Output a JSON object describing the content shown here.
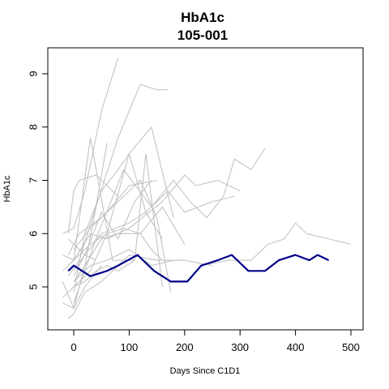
{
  "chart_data": {
    "type": "line",
    "title": "HbA1c",
    "subtitle": "105-001",
    "xlabel": "Days Since C1D1",
    "ylabel": "HbA1c",
    "xlim": [
      -40,
      520
    ],
    "ylim": [
      4.2,
      9.5
    ],
    "xticks": [
      0,
      100,
      200,
      300,
      400,
      500
    ],
    "yticks": [
      5,
      6,
      7,
      8,
      9
    ],
    "grid": false,
    "highlight_color": "#00008B",
    "background_color": "#BEBEBE",
    "background_series": [
      {
        "x": [
          -20,
          0,
          20,
          50,
          80
        ],
        "y": [
          6.0,
          6.1,
          6.8,
          8.3,
          9.3
        ]
      },
      {
        "x": [
          -10,
          10,
          40,
          80,
          120,
          150,
          170
        ],
        "y": [
          5.2,
          5.5,
          6.5,
          7.8,
          8.8,
          8.7,
          8.7
        ]
      },
      {
        "x": [
          0,
          30,
          60,
          100,
          140,
          180
        ],
        "y": [
          5.0,
          5.3,
          6.0,
          7.5,
          8.0,
          6.3
        ]
      },
      {
        "x": [
          0,
          20,
          50,
          80,
          100,
          130,
          160
        ],
        "y": [
          4.9,
          6.0,
          6.8,
          7.2,
          7.5,
          6.4,
          5.9
        ]
      },
      {
        "x": [
          -20,
          0,
          30,
          70,
          110,
          130,
          160
        ],
        "y": [
          5.3,
          5.5,
          7.8,
          5.5,
          5.5,
          7.5,
          5.0
        ]
      },
      {
        "x": [
          -10,
          10,
          50,
          100,
          120,
          150,
          175
        ],
        "y": [
          5.6,
          6.0,
          6.3,
          6.8,
          7.0,
          6.3,
          4.9
        ]
      },
      {
        "x": [
          0,
          20,
          50,
          80,
          110,
          140
        ],
        "y": [
          5.2,
          5.6,
          6.4,
          5.9,
          6.6,
          7.0
        ]
      },
      {
        "x": [
          -20,
          0,
          20,
          40,
          60
        ],
        "y": [
          5.1,
          4.6,
          5.4,
          6.5,
          7.7
        ]
      },
      {
        "x": [
          -10,
          0,
          10,
          40,
          80
        ],
        "y": [
          6.0,
          6.8,
          7.0,
          7.1,
          6.7
        ]
      },
      {
        "x": [
          0,
          30,
          60,
          100,
          150
        ],
        "y": [
          5.7,
          6.1,
          6.4,
          6.9,
          7.0
        ]
      },
      {
        "x": [
          0,
          20,
          50,
          100,
          130,
          170,
          200,
          250,
          290
        ],
        "y": [
          5.3,
          5.6,
          6.0,
          6.2,
          6.4,
          6.8,
          6.4,
          6.6,
          6.7
        ]
      },
      {
        "x": [
          0,
          40,
          90,
          140,
          180,
          210,
          240,
          270,
          290,
          320,
          345
        ],
        "y": [
          4.7,
          5.9,
          7.2,
          6.5,
          7.0,
          6.6,
          6.3,
          6.7,
          7.4,
          7.2,
          7.6
        ]
      },
      {
        "x": [
          -20,
          0,
          30,
          60,
          100,
          160,
          200,
          220,
          260,
          300
        ],
        "y": [
          5.6,
          5.5,
          6.0,
          5.9,
          6.1,
          6.6,
          7.1,
          6.9,
          7.0,
          6.8
        ]
      },
      {
        "x": [
          -10,
          0,
          20,
          50,
          100,
          150,
          200,
          250
        ],
        "y": [
          4.4,
          4.5,
          4.9,
          5.1,
          5.6,
          5.5,
          5.5,
          5.4
        ]
      },
      {
        "x": [
          0,
          20,
          50,
          80,
          120,
          140,
          160
        ],
        "y": [
          5.1,
          5.4,
          5.9,
          6.0,
          6.0,
          5.7,
          5.5
        ]
      },
      {
        "x": [
          -20,
          0,
          20,
          40,
          60,
          80,
          110
        ],
        "y": [
          4.8,
          5.0,
          5.1,
          5.3,
          5.4,
          5.3,
          5.5
        ]
      },
      {
        "x": [
          0,
          30,
          60,
          90,
          120,
          160,
          200
        ],
        "y": [
          5.5,
          5.8,
          6.0,
          6.1,
          6.0,
          6.5,
          5.8
        ]
      },
      {
        "x": [
          0,
          30,
          60,
          100,
          140,
          180
        ],
        "y": [
          5.1,
          5.4,
          5.5,
          5.7,
          5.4,
          5.5
        ]
      },
      {
        "x": [
          230,
          280,
          320,
          350,
          380,
          400,
          420,
          460,
          500
        ],
        "y": [
          5.4,
          5.5,
          5.5,
          5.8,
          5.9,
          6.2,
          6.0,
          5.9,
          5.8
        ]
      },
      {
        "x": [
          -20,
          0,
          20,
          50
        ],
        "y": [
          4.7,
          4.6,
          5.0,
          5.4
        ]
      },
      {
        "x": [
          -10,
          0,
          20,
          40
        ],
        "y": [
          5.9,
          5.8,
          5.6,
          5.5
        ]
      }
    ],
    "series": [
      {
        "x": [
          -10,
          0,
          30,
          60,
          80,
          115,
          145,
          175,
          205,
          230,
          260,
          285,
          315,
          345,
          370,
          400,
          425,
          440,
          460
        ],
        "y": [
          5.3,
          5.4,
          5.2,
          5.3,
          5.4,
          5.6,
          5.3,
          5.1,
          5.1,
          5.4,
          5.5,
          5.6,
          5.3,
          5.3,
          5.5,
          5.6,
          5.5,
          5.6,
          5.5
        ]
      }
    ]
  }
}
